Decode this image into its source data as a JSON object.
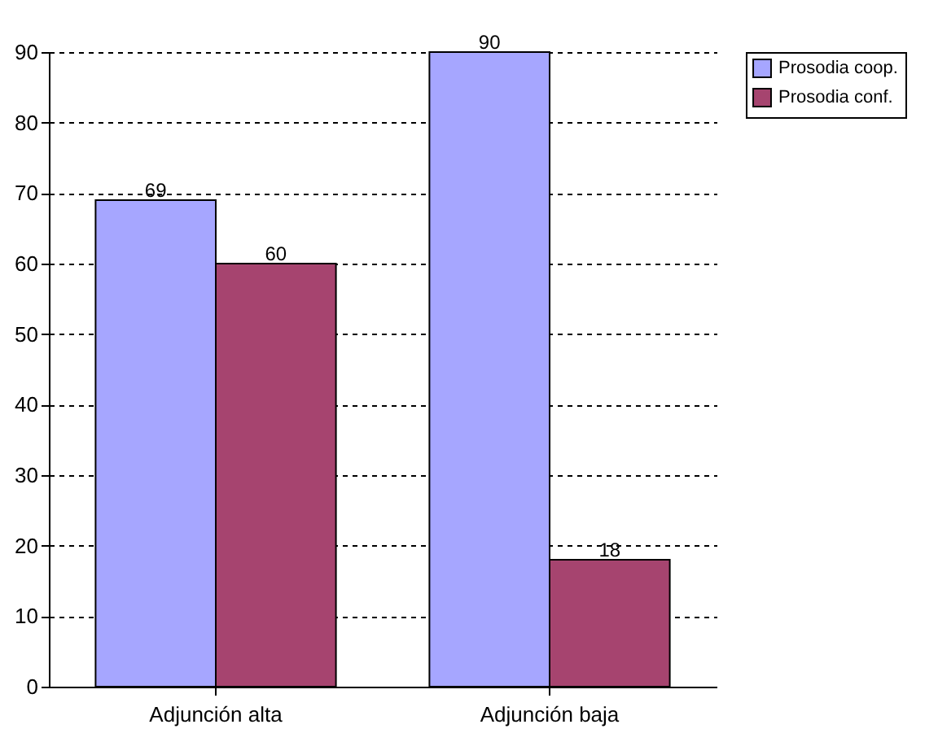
{
  "chart_data": {
    "type": "bar",
    "categories": [
      "Adjunción alta",
      "Adjunción baja"
    ],
    "series": [
      {
        "name": "Prosodia coop.",
        "color": "#a6a6ff",
        "values": [
          69,
          90
        ]
      },
      {
        "name": "Prosodia conf.",
        "color": "#a6446f",
        "values": [
          60,
          18
        ]
      }
    ],
    "ylim": [
      0,
      90
    ],
    "yticks": [
      0,
      10,
      20,
      30,
      40,
      50,
      60,
      70,
      80,
      90
    ],
    "grid": "y",
    "legend": "right",
    "data_labels": true
  }
}
